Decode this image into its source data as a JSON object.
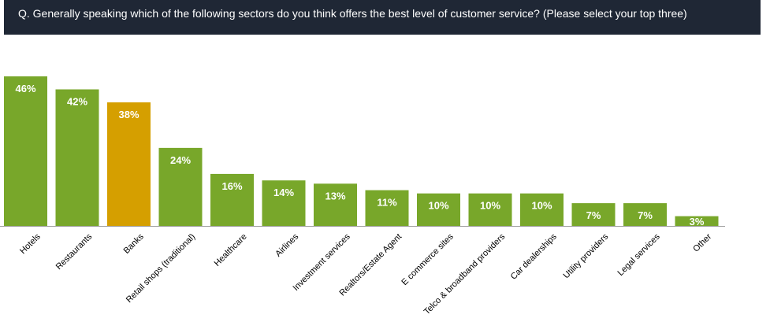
{
  "question": "Q. Generally speaking which of the following sectors do you think offers the best level of customer service? (Please select your top three)",
  "colors": {
    "header_bg": "#1f2735",
    "bar_default": "#78a72a",
    "bar_highlight": "#d59f00",
    "baseline": "#a0a0a0"
  },
  "chart_data": {
    "type": "bar",
    "title": "",
    "xlabel": "",
    "ylabel": "",
    "ylim": [
      0,
      46
    ],
    "grid": false,
    "highlight": "Banks",
    "categories": [
      "Hotels",
      "Restaurants",
      "Banks",
      "Retail shops (traditional)",
      "Healthcare",
      "Airlines",
      "Investment services",
      "Realtors/Estate Agent",
      "E commerce sites",
      "Telco & broadband providers",
      "Car dealerships",
      "Utility providers",
      "Legal services",
      "Other"
    ],
    "values": [
      46,
      42,
      38,
      24,
      16,
      14,
      13,
      11,
      10,
      10,
      10,
      7,
      7,
      3
    ],
    "value_labels": [
      "46%",
      "42%",
      "38%",
      "24%",
      "16%",
      "14%",
      "13%",
      "11%",
      "10%",
      "10%",
      "10%",
      "7%",
      "7%",
      "3%"
    ]
  }
}
